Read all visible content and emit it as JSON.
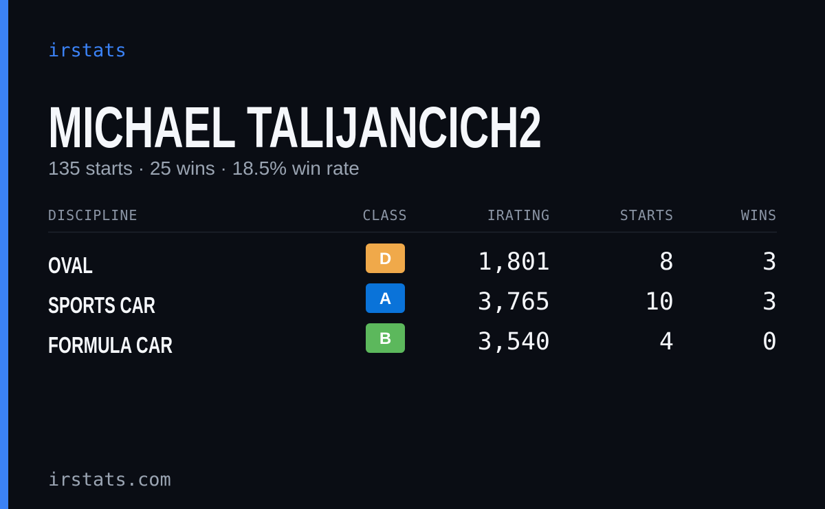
{
  "brand": "irstats",
  "profile": {
    "name": "MICHAEL TALIJANCICH2",
    "summary": "135 starts · 25 wins · 18.5% win rate"
  },
  "table": {
    "headers": [
      "DISCIPLINE",
      "CLASS",
      "IRATING",
      "STARTS",
      "WINS"
    ],
    "rows": [
      [
        "OVAL",
        "D",
        "1,801",
        "8",
        "3"
      ],
      [
        "SPORTS CAR",
        "A",
        "3,765",
        "10",
        "3"
      ],
      [
        "FORMULA CAR",
        "B",
        "3,540",
        "4",
        "0"
      ]
    ]
  },
  "footer": "irstats.com"
}
